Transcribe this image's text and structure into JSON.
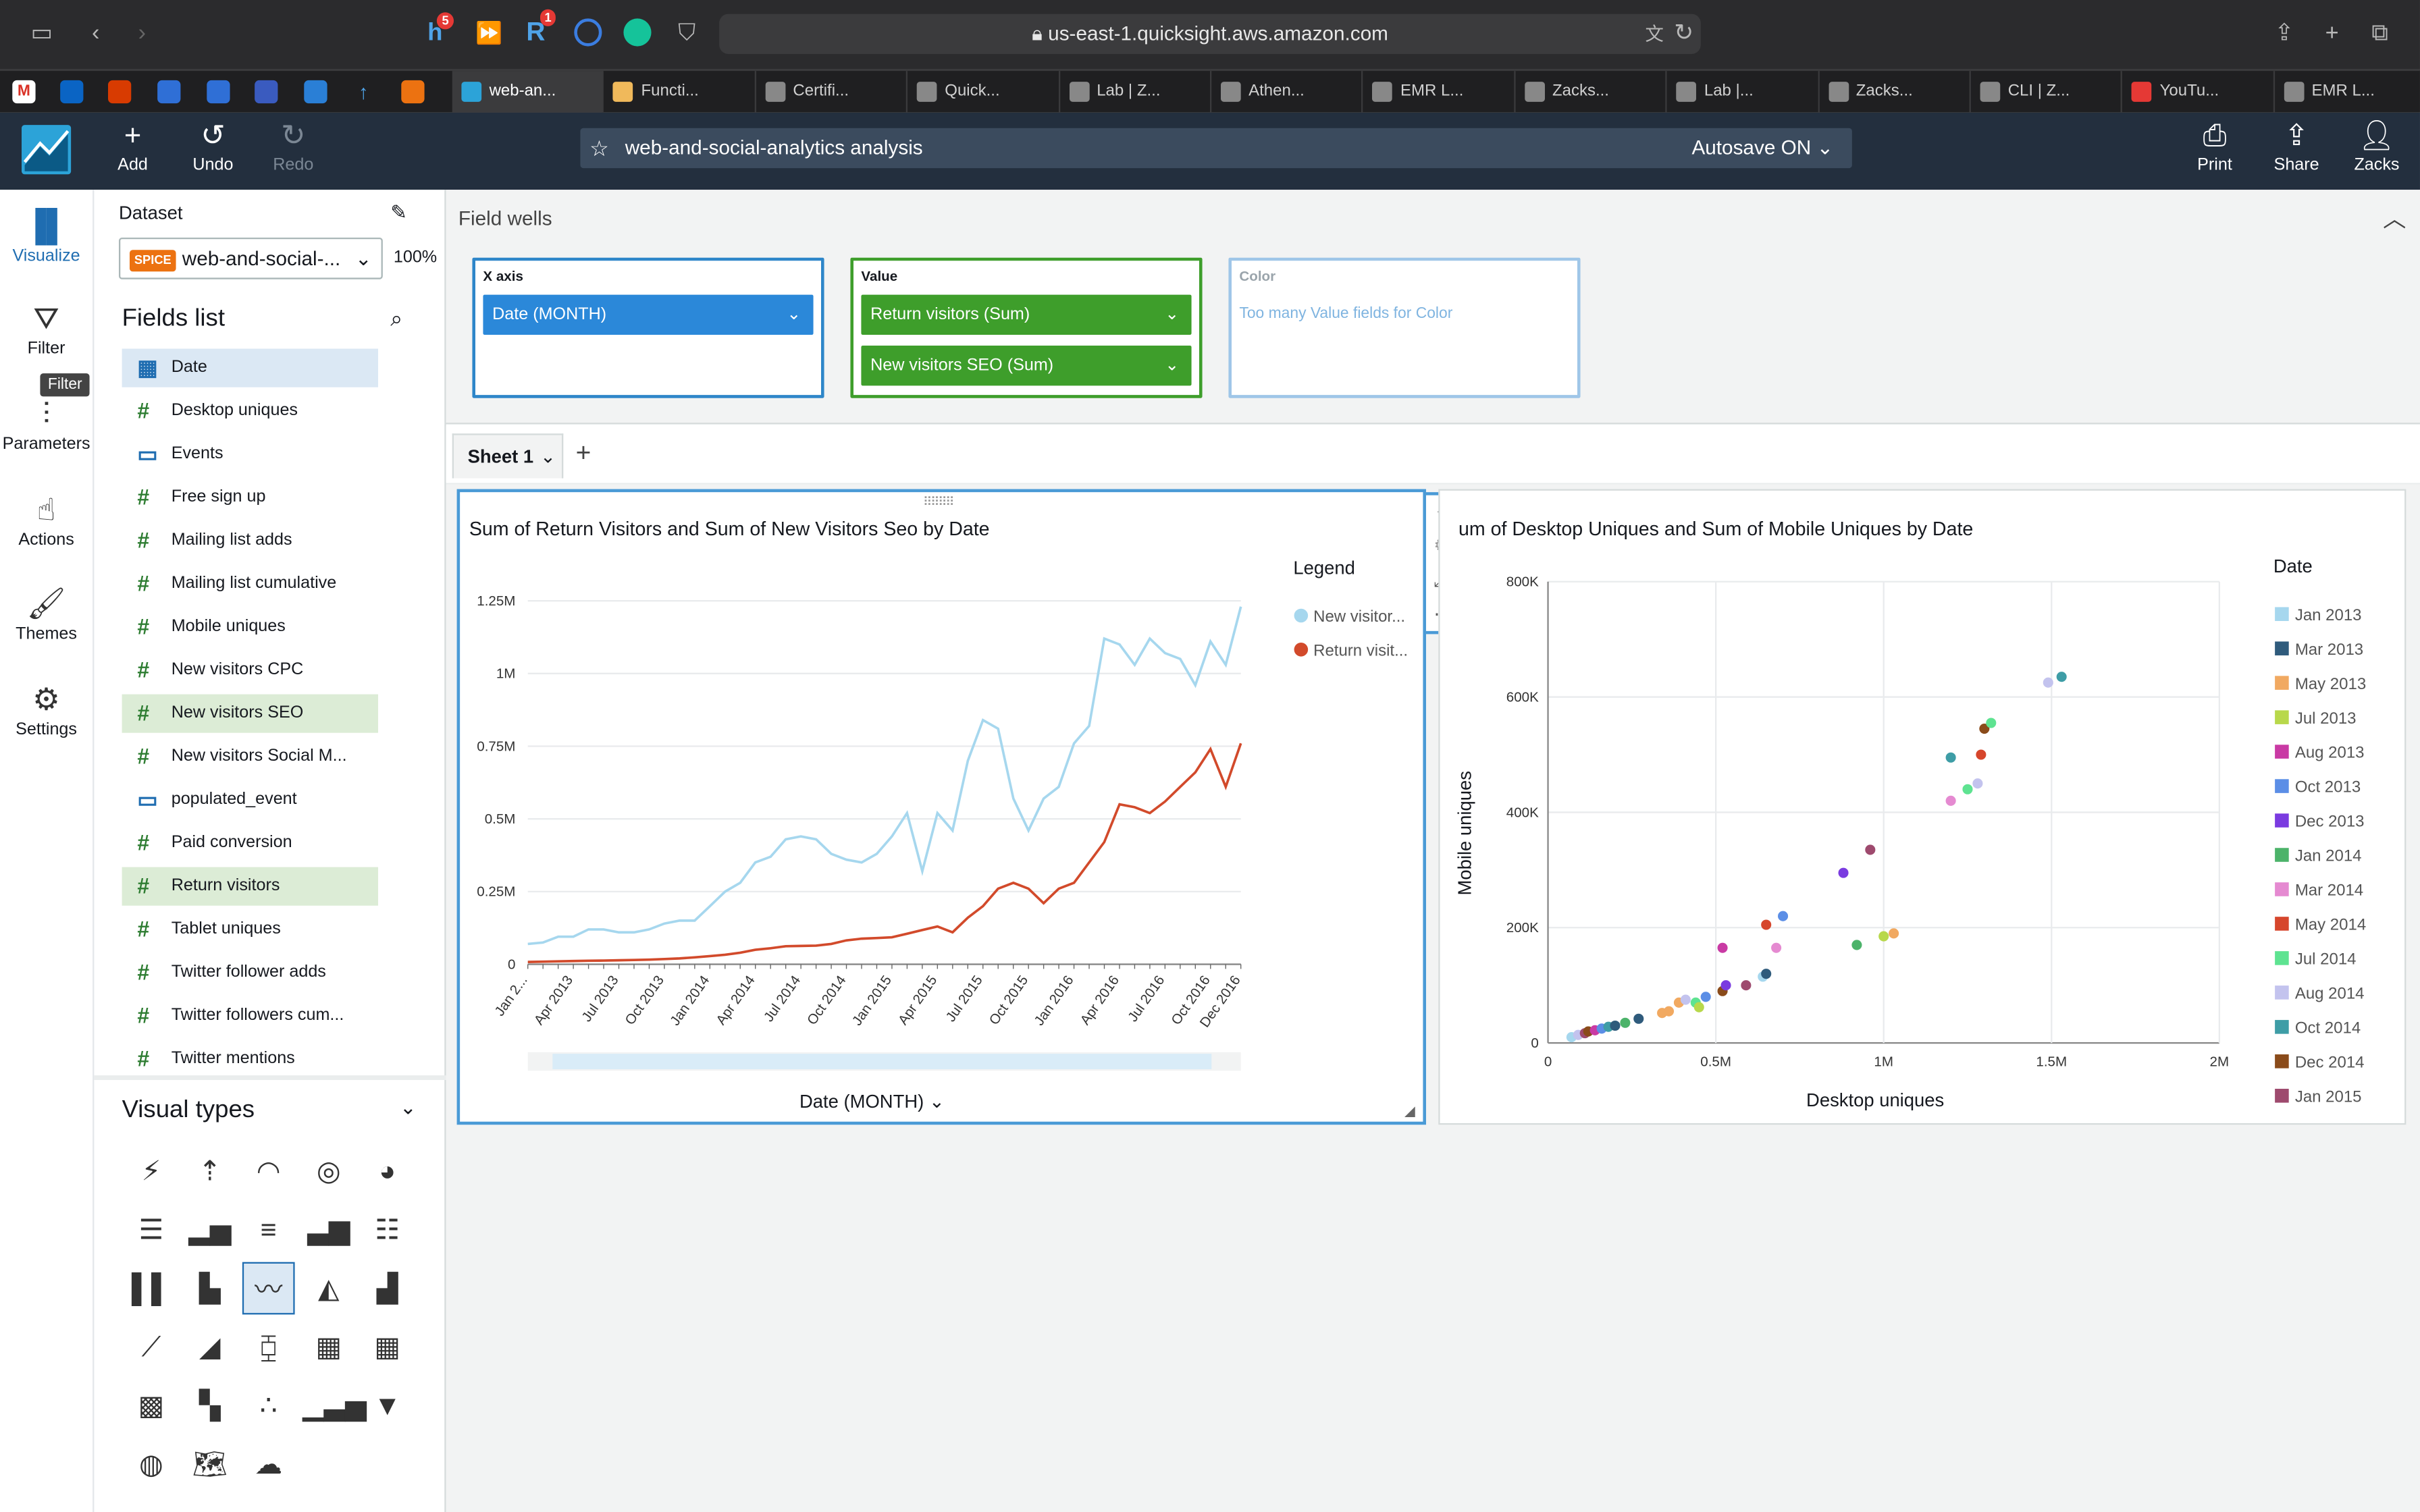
{
  "browser": {
    "url": "us-east-1.quicksight.aws.amazon.com",
    "ext_badge_h": "5",
    "ext_badge_r": "1",
    "tabs": [
      {
        "label": "web-an...",
        "color": "#2ca3d8"
      },
      {
        "label": "Functi...",
        "color": "#f0b95b"
      },
      {
        "label": "Certifi...",
        "color": "#888"
      },
      {
        "label": "Quick...",
        "color": "#888"
      },
      {
        "label": "Lab | Z...",
        "color": "#888"
      },
      {
        "label": "Athen...",
        "color": "#888"
      },
      {
        "label": "EMR L...",
        "color": "#888"
      },
      {
        "label": "Zacks...",
        "color": "#888"
      },
      {
        "label": "Lab |...",
        "color": "#888"
      },
      {
        "label": "Zacks...",
        "color": "#888"
      },
      {
        "label": "CLI | Z...",
        "color": "#888"
      },
      {
        "label": "YouTu...",
        "color": "#e53935"
      },
      {
        "label": "EMR L...",
        "color": "#888"
      }
    ]
  },
  "header": {
    "add": "Add",
    "undo": "Undo",
    "redo": "Redo",
    "analysis_name": "web-and-social-analytics analysis",
    "autosave": "Autosave ON",
    "print": "Print",
    "share": "Share",
    "user": "Zacks"
  },
  "rail": {
    "visualize": "Visualize",
    "filter": "Filter",
    "filter_tooltip": "Filter",
    "parameters": "Parameters",
    "actions": "Actions",
    "themes": "Themes",
    "settings": "Settings"
  },
  "fields_panel": {
    "dataset_label": "Dataset",
    "spice": "SPICE",
    "dataset_name": "web-and-social-...",
    "percent": "100%",
    "fields_title": "Fields list",
    "fields": [
      {
        "name": "Date",
        "kind": "date",
        "state": "selected"
      },
      {
        "name": "Desktop uniques",
        "kind": "measure",
        "state": ""
      },
      {
        "name": "Events",
        "kind": "dimension",
        "state": ""
      },
      {
        "name": "Free sign up",
        "kind": "measure",
        "state": ""
      },
      {
        "name": "Mailing list adds",
        "kind": "measure",
        "state": ""
      },
      {
        "name": "Mailing list cumulative",
        "kind": "measure",
        "state": ""
      },
      {
        "name": "Mobile uniques",
        "kind": "measure",
        "state": ""
      },
      {
        "name": "New visitors CPC",
        "kind": "measure",
        "state": ""
      },
      {
        "name": "New visitors SEO",
        "kind": "measure",
        "state": "used"
      },
      {
        "name": "New visitors Social M...",
        "kind": "measure",
        "state": ""
      },
      {
        "name": "populated_event",
        "kind": "dimension",
        "state": ""
      },
      {
        "name": "Paid conversion",
        "kind": "measure",
        "state": ""
      },
      {
        "name": "Return visitors",
        "kind": "measure",
        "state": "used"
      },
      {
        "name": "Tablet uniques",
        "kind": "measure",
        "state": ""
      },
      {
        "name": "Twitter follower adds",
        "kind": "measure",
        "state": ""
      },
      {
        "name": "Twitter followers cum...",
        "kind": "measure",
        "state": ""
      },
      {
        "name": "Twitter mentions",
        "kind": "measure",
        "state": ""
      }
    ],
    "visual_types_title": "Visual types"
  },
  "field_wells": {
    "title": "Field wells",
    "x_axis_label": "X axis",
    "x_axis_field": "Date (MONTH)",
    "value_label": "Value",
    "value_fields": [
      "Return visitors (Sum)",
      "New visitors SEO (Sum)"
    ],
    "color_label": "Color",
    "color_placeholder": "Too many Value fields for Color"
  },
  "sheet": {
    "tab": "Sheet 1"
  },
  "chart_data": [
    {
      "type": "line",
      "title": "Sum of Return Visitors and Sum of New Visitors Seo by Date",
      "xlabel": "Date (MONTH)",
      "ylabel": "",
      "legend_title": "Legend",
      "legend_position": "right",
      "ylim": [
        0,
        1300000
      ],
      "y_ticks": [
        "0",
        "0.25M",
        "0.5M",
        "0.75M",
        "1M",
        "1.25M"
      ],
      "x_tick_labels": [
        "Jan 2...",
        "Apr 2013",
        "Jul 2013",
        "Oct 2013",
        "Jan 2014",
        "Apr 2014",
        "Jul 2014",
        "Oct 2014",
        "Jan 2015",
        "Apr 2015",
        "Jul 2015",
        "Oct 2015",
        "Jan 2016",
        "Apr 2016",
        "Jul 2016",
        "Oct 2016",
        "Dec 2016"
      ],
      "x": [
        "Jan 2013",
        "Feb 2013",
        "Mar 2013",
        "Apr 2013",
        "May 2013",
        "Jun 2013",
        "Jul 2013",
        "Aug 2013",
        "Sep 2013",
        "Oct 2013",
        "Nov 2013",
        "Dec 2013",
        "Jan 2014",
        "Feb 2014",
        "Mar 2014",
        "Apr 2014",
        "May 2014",
        "Jun 2014",
        "Jul 2014",
        "Aug 2014",
        "Sep 2014",
        "Oct 2014",
        "Nov 2014",
        "Dec 2014",
        "Jan 2015",
        "Feb 2015",
        "Mar 2015",
        "Apr 2015",
        "May 2015",
        "Jun 2015",
        "Jul 2015",
        "Aug 2015",
        "Sep 2015",
        "Oct 2015",
        "Nov 2015",
        "Dec 2015",
        "Jan 2016",
        "Feb 2016",
        "Mar 2016",
        "Apr 2016",
        "May 2016",
        "Jun 2016",
        "Jul 2016",
        "Aug 2016",
        "Sep 2016",
        "Oct 2016",
        "Nov 2016",
        "Dec 2016"
      ],
      "series": [
        {
          "name": "New visitor...",
          "color": "#a6d7ee",
          "values": [
            70000,
            75000,
            95000,
            95000,
            120000,
            120000,
            110000,
            110000,
            120000,
            140000,
            150000,
            150000,
            200000,
            250000,
            280000,
            350000,
            370000,
            430000,
            440000,
            430000,
            380000,
            360000,
            350000,
            380000,
            440000,
            520000,
            320000,
            520000,
            460000,
            700000,
            840000,
            810000,
            570000,
            460000,
            570000,
            610000,
            760000,
            820000,
            1120000,
            1100000,
            1030000,
            1120000,
            1070000,
            1050000,
            960000,
            1110000,
            1030000,
            1230000
          ]
        },
        {
          "name": "Return visit...",
          "color": "#d24a2b",
          "values": [
            8000,
            9000,
            10000,
            11000,
            12000,
            13000,
            14000,
            15000,
            16000,
            18000,
            20000,
            24000,
            28000,
            33000,
            40000,
            50000,
            55000,
            62000,
            63000,
            64000,
            70000,
            82000,
            88000,
            90000,
            93000,
            105000,
            118000,
            130000,
            110000,
            160000,
            200000,
            260000,
            280000,
            260000,
            210000,
            260000,
            280000,
            350000,
            420000,
            550000,
            540000,
            520000,
            560000,
            610000,
            660000,
            740000,
            610000,
            760000
          ]
        }
      ]
    },
    {
      "type": "scatter",
      "title": "um of Desktop Uniques and Sum of Mobile Uniques by Date",
      "xlabel": "Desktop uniques",
      "ylabel": "Mobile uniques",
      "legend_title": "Date",
      "legend_position": "right",
      "xlim": [
        0,
        2000000
      ],
      "ylim": [
        0,
        800000
      ],
      "x_ticks": [
        "0",
        "0.5M",
        "1M",
        "1.5M",
        "2M"
      ],
      "y_ticks": [
        "0",
        "200K",
        "400K",
        "600K",
        "800K"
      ],
      "legend": [
        {
          "label": "Jan 2013",
          "color": "#a6d7ee"
        },
        {
          "label": "Mar 2013",
          "color": "#2f5b7c"
        },
        {
          "label": "May 2013",
          "color": "#f1a961"
        },
        {
          "label": "Jul 2013",
          "color": "#b8d84b"
        },
        {
          "label": "Aug 2013",
          "color": "#c93aa4"
        },
        {
          "label": "Oct 2013",
          "color": "#5b8ee6"
        },
        {
          "label": "Dec 2013",
          "color": "#7a3be0"
        },
        {
          "label": "Jan 2014",
          "color": "#4cb36a"
        },
        {
          "label": "Mar 2014",
          "color": "#e58ad1"
        },
        {
          "label": "May 2014",
          "color": "#d6462c"
        },
        {
          "label": "Jul 2014",
          "color": "#5ee391"
        },
        {
          "label": "Aug 2014",
          "color": "#c3c3ee"
        },
        {
          "label": "Oct 2014",
          "color": "#3e9da6"
        },
        {
          "label": "Dec 2014",
          "color": "#8a4b1a"
        },
        {
          "label": "Jan 2015",
          "color": "#9e4a6e"
        }
      ],
      "points": [
        {
          "x": 70000,
          "y": 10000,
          "color": "#a6d7ee"
        },
        {
          "x": 90000,
          "y": 14000,
          "color": "#c3c3ee"
        },
        {
          "x": 110000,
          "y": 17000,
          "color": "#9e4a6e"
        },
        {
          "x": 120000,
          "y": 20000,
          "color": "#8a4b1a"
        },
        {
          "x": 140000,
          "y": 22000,
          "color": "#c93aa4"
        },
        {
          "x": 160000,
          "y": 25000,
          "color": "#5b8ee6"
        },
        {
          "x": 180000,
          "y": 28000,
          "color": "#3e9da6"
        },
        {
          "x": 200000,
          "y": 30000,
          "color": "#2f5b7c"
        },
        {
          "x": 230000,
          "y": 35000,
          "color": "#4cb36a"
        },
        {
          "x": 270000,
          "y": 42000,
          "color": "#2f5b7c"
        },
        {
          "x": 340000,
          "y": 52000,
          "color": "#f1a961"
        },
        {
          "x": 360000,
          "y": 55000,
          "color": "#f1a961"
        },
        {
          "x": 390000,
          "y": 70000,
          "color": "#f1a961"
        },
        {
          "x": 410000,
          "y": 75000,
          "color": "#c3c3ee"
        },
        {
          "x": 440000,
          "y": 70000,
          "color": "#5ee391"
        },
        {
          "x": 450000,
          "y": 62000,
          "color": "#b8d84b"
        },
        {
          "x": 470000,
          "y": 80000,
          "color": "#5b8ee6"
        },
        {
          "x": 520000,
          "y": 90000,
          "color": "#8a4b1a"
        },
        {
          "x": 530000,
          "y": 100000,
          "color": "#7a3be0"
        },
        {
          "x": 520000,
          "y": 165000,
          "color": "#c93aa4"
        },
        {
          "x": 590000,
          "y": 100000,
          "color": "#9e4a6e"
        },
        {
          "x": 640000,
          "y": 115000,
          "color": "#a6d7ee"
        },
        {
          "x": 650000,
          "y": 120000,
          "color": "#2f5b7c"
        },
        {
          "x": 650000,
          "y": 205000,
          "color": "#d6462c"
        },
        {
          "x": 680000,
          "y": 165000,
          "color": "#e58ad1"
        },
        {
          "x": 700000,
          "y": 220000,
          "color": "#5b8ee6"
        },
        {
          "x": 880000,
          "y": 295000,
          "color": "#7a3be0"
        },
        {
          "x": 920000,
          "y": 170000,
          "color": "#4cb36a"
        },
        {
          "x": 960000,
          "y": 335000,
          "color": "#9e4a6e"
        },
        {
          "x": 1000000,
          "y": 185000,
          "color": "#b8d84b"
        },
        {
          "x": 1030000,
          "y": 190000,
          "color": "#f1a961"
        },
        {
          "x": 1200000,
          "y": 420000,
          "color": "#e58ad1"
        },
        {
          "x": 1200000,
          "y": 495000,
          "color": "#3e9da6"
        },
        {
          "x": 1250000,
          "y": 440000,
          "color": "#5ee391"
        },
        {
          "x": 1280000,
          "y": 450000,
          "color": "#c3c3ee"
        },
        {
          "x": 1290000,
          "y": 500000,
          "color": "#d6462c"
        },
        {
          "x": 1300000,
          "y": 545000,
          "color": "#8a4b1a"
        },
        {
          "x": 1320000,
          "y": 555000,
          "color": "#5ee391"
        },
        {
          "x": 1490000,
          "y": 625000,
          "color": "#c3c3ee"
        },
        {
          "x": 1530000,
          "y": 635000,
          "color": "#3e9da6"
        }
      ]
    }
  ]
}
